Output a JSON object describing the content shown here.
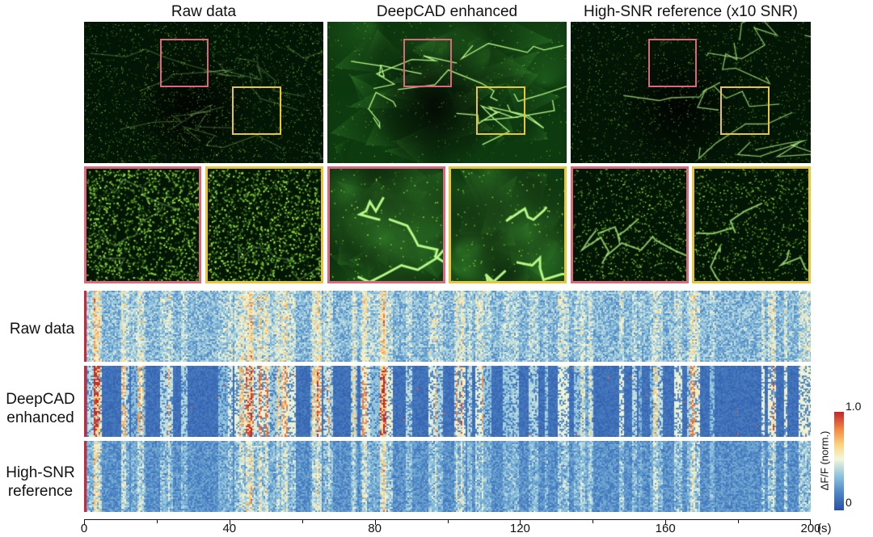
{
  "columns": [
    {
      "title": "Raw data",
      "style": "raw"
    },
    {
      "title": "DeepCAD enhanced",
      "style": "enhanced"
    },
    {
      "title": "High-SNR reference (x10 SNR)",
      "style": "ref"
    }
  ],
  "roi_colors": {
    "red": "#d96a7e",
    "yellow": "#e7c63a"
  },
  "heatmaps": [
    {
      "label": "Raw data",
      "style": "raw"
    },
    {
      "label": "DeepCAD\nenhanced",
      "style": "enhanced"
    },
    {
      "label": "High-SNR\nreference",
      "style": "ref"
    }
  ],
  "time_axis": {
    "ticks": [
      "0",
      "40",
      "80",
      "120",
      "160",
      "200"
    ],
    "unit": "(s)",
    "max": 200
  },
  "colorbar": {
    "label": "ΔF/F (norm.)",
    "max_label": "1.0",
    "min_label": "0"
  }
}
